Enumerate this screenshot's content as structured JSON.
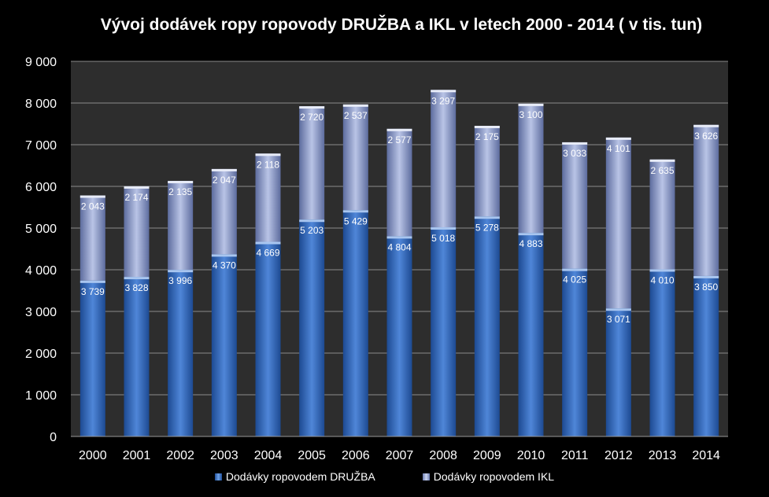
{
  "chart_data": {
    "type": "bar",
    "stacked": true,
    "title": "Vývoj dodávek ropy ropovody DRUŽBA  a IKL v letech 2000 - 2014 ( v tis. tun)",
    "categories": [
      "2000",
      "2001",
      "2002",
      "2003",
      "2004",
      "2005",
      "2006",
      "2007",
      "2008",
      "2009",
      "2010",
      "2011",
      "2012",
      "2013",
      "2014"
    ],
    "series": [
      {
        "name": "Dodávky ropovodem DRUŽBA",
        "values": [
          3739,
          3828,
          3996,
          4370,
          4669,
          5203,
          5429,
          4804,
          5018,
          5278,
          4883,
          4025,
          3071,
          4010,
          3850
        ],
        "labels": [
          "3 739",
          "3 828",
          "3 996",
          "4 370",
          "4 669",
          "5 203",
          "5 429",
          "4 804",
          "5 018",
          "5 278",
          "4 883",
          "4 025",
          "3 071",
          "4 010",
          "3 850"
        ],
        "color": "#3a6fc4"
      },
      {
        "name": "Dodávky ropovodem IKL",
        "values": [
          2043,
          2174,
          2135,
          2047,
          2118,
          2720,
          2537,
          2577,
          3297,
          2175,
          3100,
          3033,
          4101,
          2635,
          3626
        ],
        "labels": [
          "2 043",
          "2 174",
          "2 135",
          "2 047",
          "2 118",
          "2 720",
          "2 537",
          "2 577",
          "3 297",
          "2 175",
          "3 100",
          "3 033",
          "4 101",
          "2 635",
          "3 626"
        ],
        "color": "#a7b4dc"
      }
    ],
    "ylim": [
      0,
      9000
    ],
    "yticks": [
      0,
      1000,
      2000,
      3000,
      4000,
      5000,
      6000,
      7000,
      8000,
      9000
    ],
    "ytick_labels": [
      "0",
      "1 000",
      "2 000",
      "3 000",
      "4 000",
      "5 000",
      "6 000",
      "7 000",
      "8 000",
      "9 000"
    ],
    "grid": true,
    "legend_position": "bottom",
    "plot_background": "#2d2d2d",
    "page_background": "#000000"
  }
}
